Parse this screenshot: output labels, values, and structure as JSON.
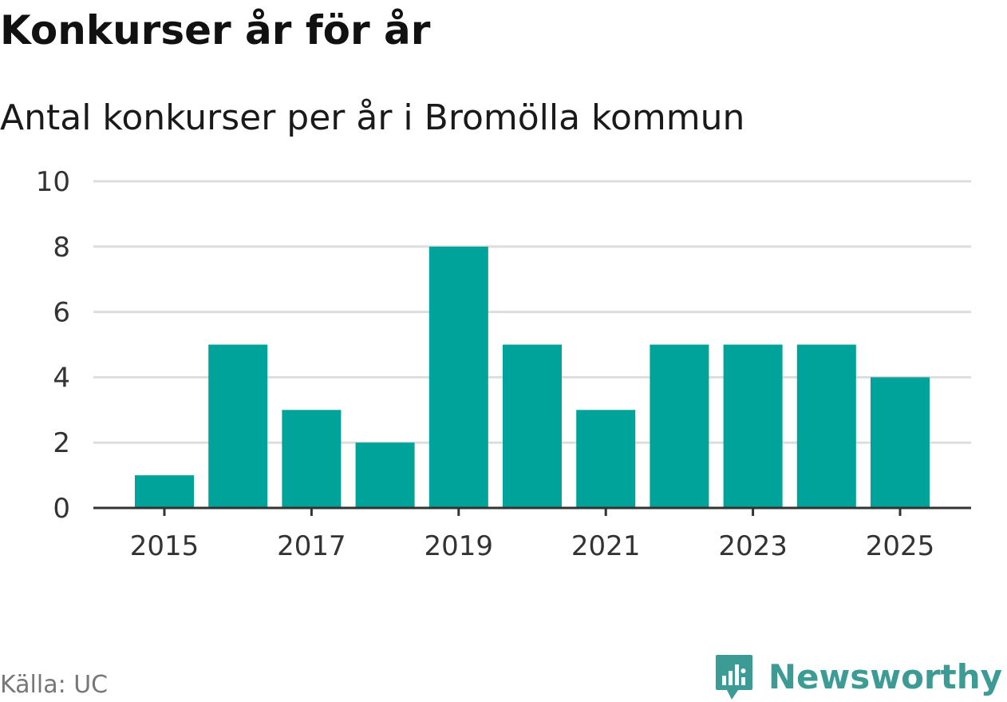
{
  "title": "Konkurser år för år",
  "subtitle": "Antal konkurser per år i Bromölla kommun",
  "source": "Källa: UC",
  "brand": {
    "name": "Newsworthy",
    "logo_icon": "newsworthy-logo-icon",
    "color": "#3c9b94"
  },
  "colors": {
    "bar": "#00a39a",
    "grid": "#dddddd",
    "axis": "#333333"
  },
  "chart_data": {
    "type": "bar",
    "categories": [
      "2015",
      "2016",
      "2017",
      "2018",
      "2019",
      "2020",
      "2021",
      "2022",
      "2023",
      "2024",
      "2025"
    ],
    "values": [
      1,
      5,
      3,
      2,
      8,
      5,
      3,
      5,
      5,
      5,
      4
    ],
    "x_tick_labels": [
      "2015",
      "2017",
      "2019",
      "2021",
      "2023",
      "2025"
    ],
    "y_ticks": [
      "0",
      "2",
      "4",
      "6",
      "8",
      "10"
    ],
    "ylim": [
      0,
      10
    ],
    "title": "Konkurser år för år",
    "xlabel": "",
    "ylabel": "",
    "grid": true
  }
}
